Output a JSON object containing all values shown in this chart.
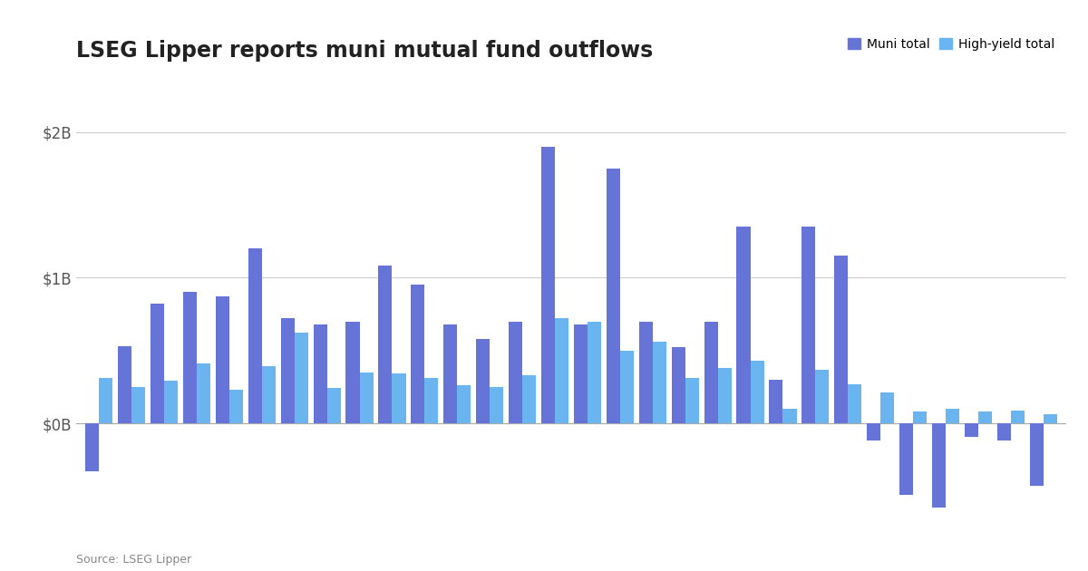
{
  "title": "LSEG Lipper reports muni mutual fund outflows",
  "source": "Source: LSEG Lipper",
  "legend_labels": [
    "Muni total",
    "High-yield total"
  ],
  "muni_color": "#6674D8",
  "hy_color": "#6AB4F0",
  "background_color": "#ffffff",
  "ylim": [
    -700,
    2200
  ],
  "yticks": [
    0,
    1000,
    2000
  ],
  "ytick_labels": [
    "$0B",
    "$1B",
    "$2B"
  ],
  "muni_values": [
    -330,
    530,
    820,
    900,
    870,
    1200,
    720,
    680,
    700,
    1080,
    950,
    680,
    580,
    700,
    1900,
    680,
    1750,
    700,
    520,
    700,
    1350,
    300,
    1350,
    1150,
    -120,
    -490,
    -580,
    -90,
    -120,
    -430
  ],
  "hy_values": [
    310,
    250,
    290,
    410,
    230,
    390,
    620,
    240,
    350,
    340,
    310,
    260,
    250,
    330,
    720,
    700,
    500,
    560,
    310,
    380,
    430,
    100,
    370,
    270,
    210,
    80,
    100,
    80,
    90,
    60
  ]
}
